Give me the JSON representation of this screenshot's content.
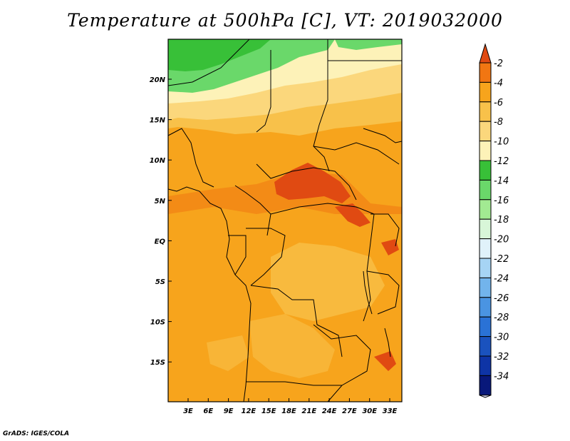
{
  "title": "Temperature at 500hPa [C], VT: 2019032000",
  "footer": "GrADS: IGES/COLA",
  "map": {
    "lon_labels": [
      "3E",
      "6E",
      "9E",
      "12E",
      "15E",
      "18E",
      "21E",
      "24E",
      "27E",
      "30E",
      "33E"
    ],
    "lat_labels": [
      "20N",
      "15N",
      "10N",
      "5N",
      "EQ",
      "5S",
      "10S",
      "15S"
    ]
  },
  "colorbar": {
    "labels": [
      "-2",
      "-4",
      "-6",
      "-8",
      "-10",
      "-12",
      "-14",
      "-16",
      "-18",
      "-20",
      "-22",
      "-24",
      "-26",
      "-28",
      "-30",
      "-32",
      "-34"
    ],
    "colors": [
      "#e04a12",
      "#f17612",
      "#f7a41c",
      "#f8c14a",
      "#fbd77c",
      "#fdf2b8",
      "#38c038",
      "#6ad86a",
      "#a2ea92",
      "#d8f6d8",
      "#e0f2fa",
      "#a6d4f4",
      "#72b4ec",
      "#4a94e2",
      "#2a72d6",
      "#1a52be",
      "#0e34a6",
      "#08187a",
      "#dcdcf8"
    ]
  }
}
